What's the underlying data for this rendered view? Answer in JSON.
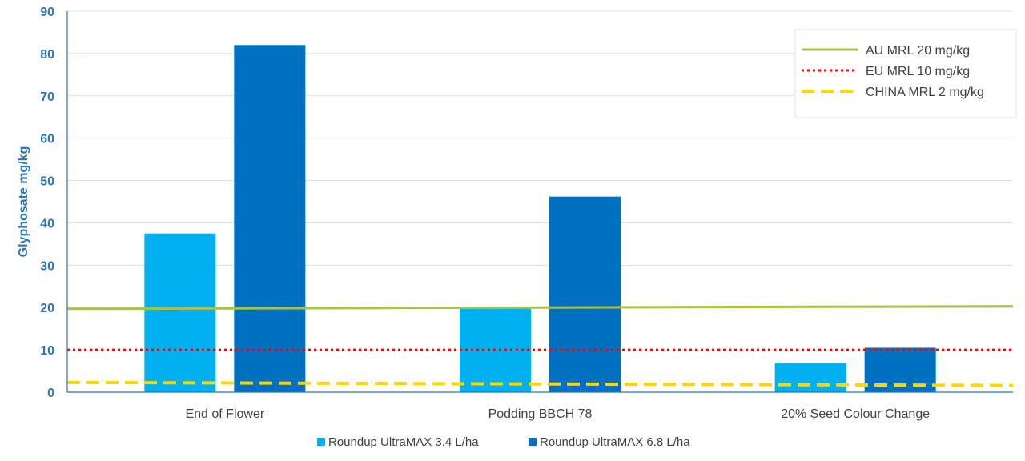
{
  "chart_data": {
    "type": "bar",
    "title": "",
    "xlabel": "",
    "ylabel": "Glyphosate mg/kg",
    "ylim": [
      0,
      90
    ],
    "yticks": [
      0,
      10,
      20,
      30,
      40,
      50,
      60,
      70,
      80,
      90
    ],
    "grid": true,
    "categories": [
      "End of Flower",
      "Podding BBCH 78",
      "20% Seed Colour Change"
    ],
    "series": [
      {
        "name": "Roundup UltraMAX 3.4 L/ha",
        "color": "#00b0f0",
        "values": [
          37.5,
          20,
          7
        ]
      },
      {
        "name": "Roundup UltraMAX 6.8 L/ha",
        "color": "#0070c0",
        "values": [
          82,
          46.2,
          10.5
        ]
      }
    ],
    "reference_lines": [
      {
        "name": "AU MRL 20 mg/kg",
        "color": "#a9c23f",
        "style": "solid",
        "value": 20
      },
      {
        "name": "EU MRL 10 mg/kg",
        "color": "#ff0000",
        "style": "dotted",
        "value": 10
      },
      {
        "name": "CHINA MRL 2 mg/kg",
        "color": "#ffd700",
        "style": "dashed",
        "value": 2
      }
    ],
    "legend_lines_position": "top-right",
    "legend_series_position": "bottom"
  }
}
